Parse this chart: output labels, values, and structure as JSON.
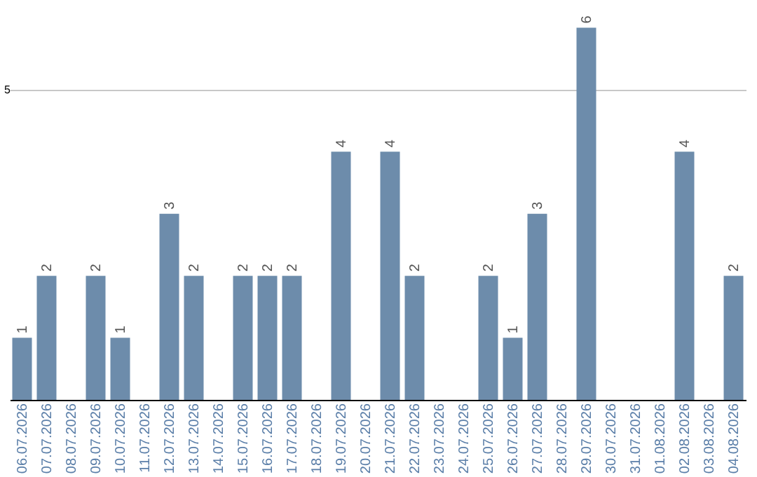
{
  "chart_data": {
    "type": "bar",
    "categories": [
      "06.07.2026",
      "07.07.2026",
      "08.07.2026",
      "09.07.2026",
      "10.07.2026",
      "11.07.2026",
      "12.07.2026",
      "13.07.2026",
      "14.07.2026",
      "15.07.2026",
      "16.07.2026",
      "17.07.2026",
      "18.07.2026",
      "19.07.2026",
      "20.07.2026",
      "21.07.2026",
      "22.07.2026",
      "23.07.2026",
      "24.07.2026",
      "25.07.2026",
      "26.07.2026",
      "27.07.2026",
      "28.07.2026",
      "29.07.2026",
      "30.07.2026",
      "31.07.2026",
      "01.08.2026",
      "02.08.2026",
      "03.08.2026",
      "04.08.2026"
    ],
    "values": [
      1,
      2,
      null,
      2,
      1,
      null,
      3,
      2,
      null,
      2,
      2,
      2,
      null,
      4,
      null,
      4,
      2,
      null,
      null,
      2,
      1,
      3,
      null,
      6,
      null,
      null,
      null,
      4,
      null,
      2
    ],
    "color": "#6d8cab",
    "ylim": [
      0,
      6.4
    ],
    "yticks": [
      5
    ],
    "grid": "y",
    "data_labels": true
  }
}
